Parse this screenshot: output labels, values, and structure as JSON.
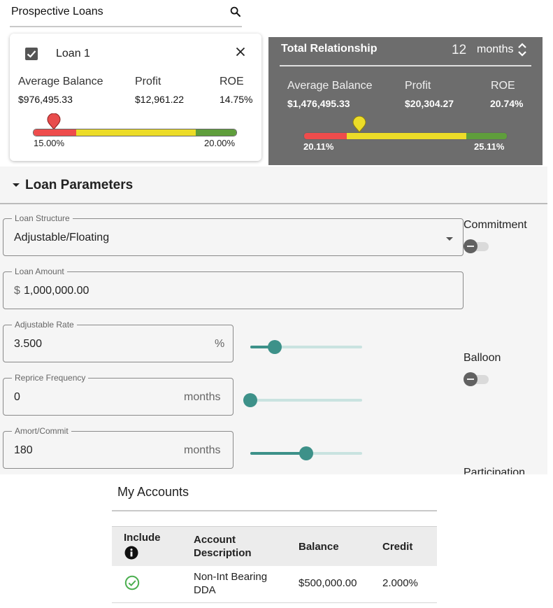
{
  "prospective_loans": {
    "title": "Prospective Loans",
    "search_icon": "search-icon"
  },
  "loan_card": {
    "name": "Loan 1",
    "checked": true,
    "metrics": [
      {
        "label": "Average Balance",
        "value": "$976,495.33"
      },
      {
        "label": "Profit",
        "value": "$12,961.22"
      },
      {
        "label": "ROE",
        "value": "14.75%"
      }
    ],
    "roe_bar": {
      "min_label": "15.00%",
      "max_label": "20.00%",
      "marker_color": "#e84c4c"
    }
  },
  "total_relationship": {
    "title": "Total Relationship",
    "period_value": "12",
    "period_unit": "months",
    "metrics": [
      {
        "label": "Average Balance",
        "value": "$1,476,495.33"
      },
      {
        "label": "Profit",
        "value": "$20,304.27"
      },
      {
        "label": "ROE",
        "value": "20.74%"
      }
    ],
    "roe_bar": {
      "min_label": "20.11%",
      "max_label": "25.11%",
      "marker_color": "#ecdc28"
    }
  },
  "loan_parameters": {
    "title": "Loan Parameters",
    "loan_structure": {
      "label": "Loan Structure",
      "value": "Adjustable/Floating"
    },
    "loan_amount": {
      "label": "Loan Amount",
      "prefix": "$",
      "value": "1,000,000.00"
    },
    "adjustable_rate": {
      "label": "Adjustable Rate",
      "value": "3.500",
      "suffix": "%",
      "slider_level": 0.18
    },
    "reprice_frequency": {
      "label": "Reprice Frequency",
      "value": "0",
      "suffix": "months",
      "slider_level": 0.0
    },
    "amort_commit": {
      "label": "Amort/Commit",
      "value": "180",
      "suffix": "months",
      "slider_level": 0.5
    },
    "commitment": {
      "label": "Commitment",
      "on": false
    },
    "balloon": {
      "label": "Balloon",
      "on": false
    },
    "participation": {
      "label": "Participation"
    }
  },
  "my_accounts": {
    "title": "My Accounts",
    "columns": {
      "include": "Include",
      "account_description": [
        "Account",
        "Description"
      ],
      "balance": "Balance",
      "credit": "Credit"
    },
    "rows": [
      {
        "included": true,
        "description": [
          "Non-Int Bearing",
          "DDA"
        ],
        "balance": "$500,000.00",
        "credit": "2.000%"
      }
    ]
  },
  "colors": {
    "accent": "#3d9189",
    "panel": "#6d6d6d",
    "red": "#ee4c4c",
    "yellow": "#ecdc28",
    "green": "#5f9e3c"
  }
}
